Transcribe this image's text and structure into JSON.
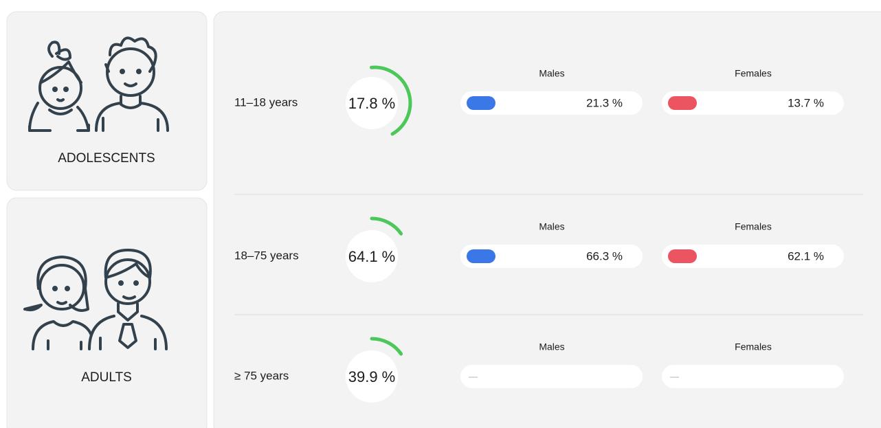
{
  "cards": [
    {
      "label": "ADOLESCENTS"
    },
    {
      "label": "ADULTS"
    }
  ],
  "rows": [
    {
      "age": "11–18 years",
      "total": "17.8 %",
      "males_label": "Males",
      "males": "21.3 %",
      "females_label": "Females",
      "females": "13.7 %"
    },
    {
      "age": "18–75 years",
      "total": "64.1 %",
      "males_label": "Males",
      "males": "66.3 %",
      "females_label": "Females",
      "females": "62.1 %"
    },
    {
      "age": "≥ 75 years",
      "total": "39.9 %",
      "males_label": "Males",
      "males": "—",
      "females_label": "Females",
      "females": "—"
    }
  ]
}
